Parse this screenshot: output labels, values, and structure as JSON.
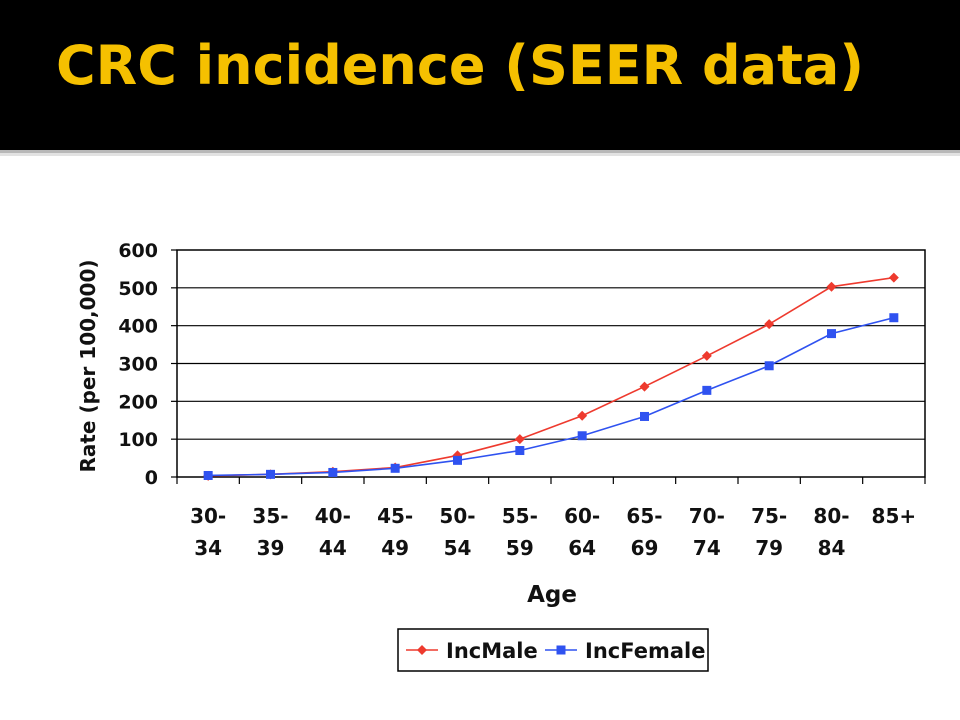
{
  "slide": {
    "title": "CRC incidence (SEER data)",
    "title_color": "#f5c000",
    "header_bg": "#000000"
  },
  "chart_data": {
    "type": "line",
    "title": "",
    "xlabel": "Age",
    "ylabel": "Rate (per 100,000)",
    "ylim": [
      0,
      600
    ],
    "yticks": [
      0,
      100,
      200,
      300,
      400,
      500,
      600
    ],
    "grid": true,
    "legend": "bottom",
    "categories": [
      [
        "30-",
        "34"
      ],
      [
        "35-",
        "39"
      ],
      [
        "40-",
        "44"
      ],
      [
        "45-",
        "49"
      ],
      [
        "50-",
        "54"
      ],
      [
        "55-",
        "59"
      ],
      [
        "60-",
        "64"
      ],
      [
        "65-",
        "69"
      ],
      [
        "70-",
        "74"
      ],
      [
        "75-",
        "79"
      ],
      [
        "80-",
        "84"
      ],
      [
        "85+",
        ""
      ]
    ],
    "series": [
      {
        "name": "IncMale",
        "color": "#ee3a2e",
        "marker": "diamond",
        "values": [
          3,
          7,
          14,
          25,
          57,
          100,
          162,
          239,
          320,
          404,
          503,
          527
        ]
      },
      {
        "name": "IncFemale",
        "color": "#2f52f0",
        "marker": "square",
        "values": [
          4,
          7,
          12,
          23,
          44,
          70,
          109,
          160,
          229,
          294,
          379,
          421
        ]
      }
    ]
  }
}
